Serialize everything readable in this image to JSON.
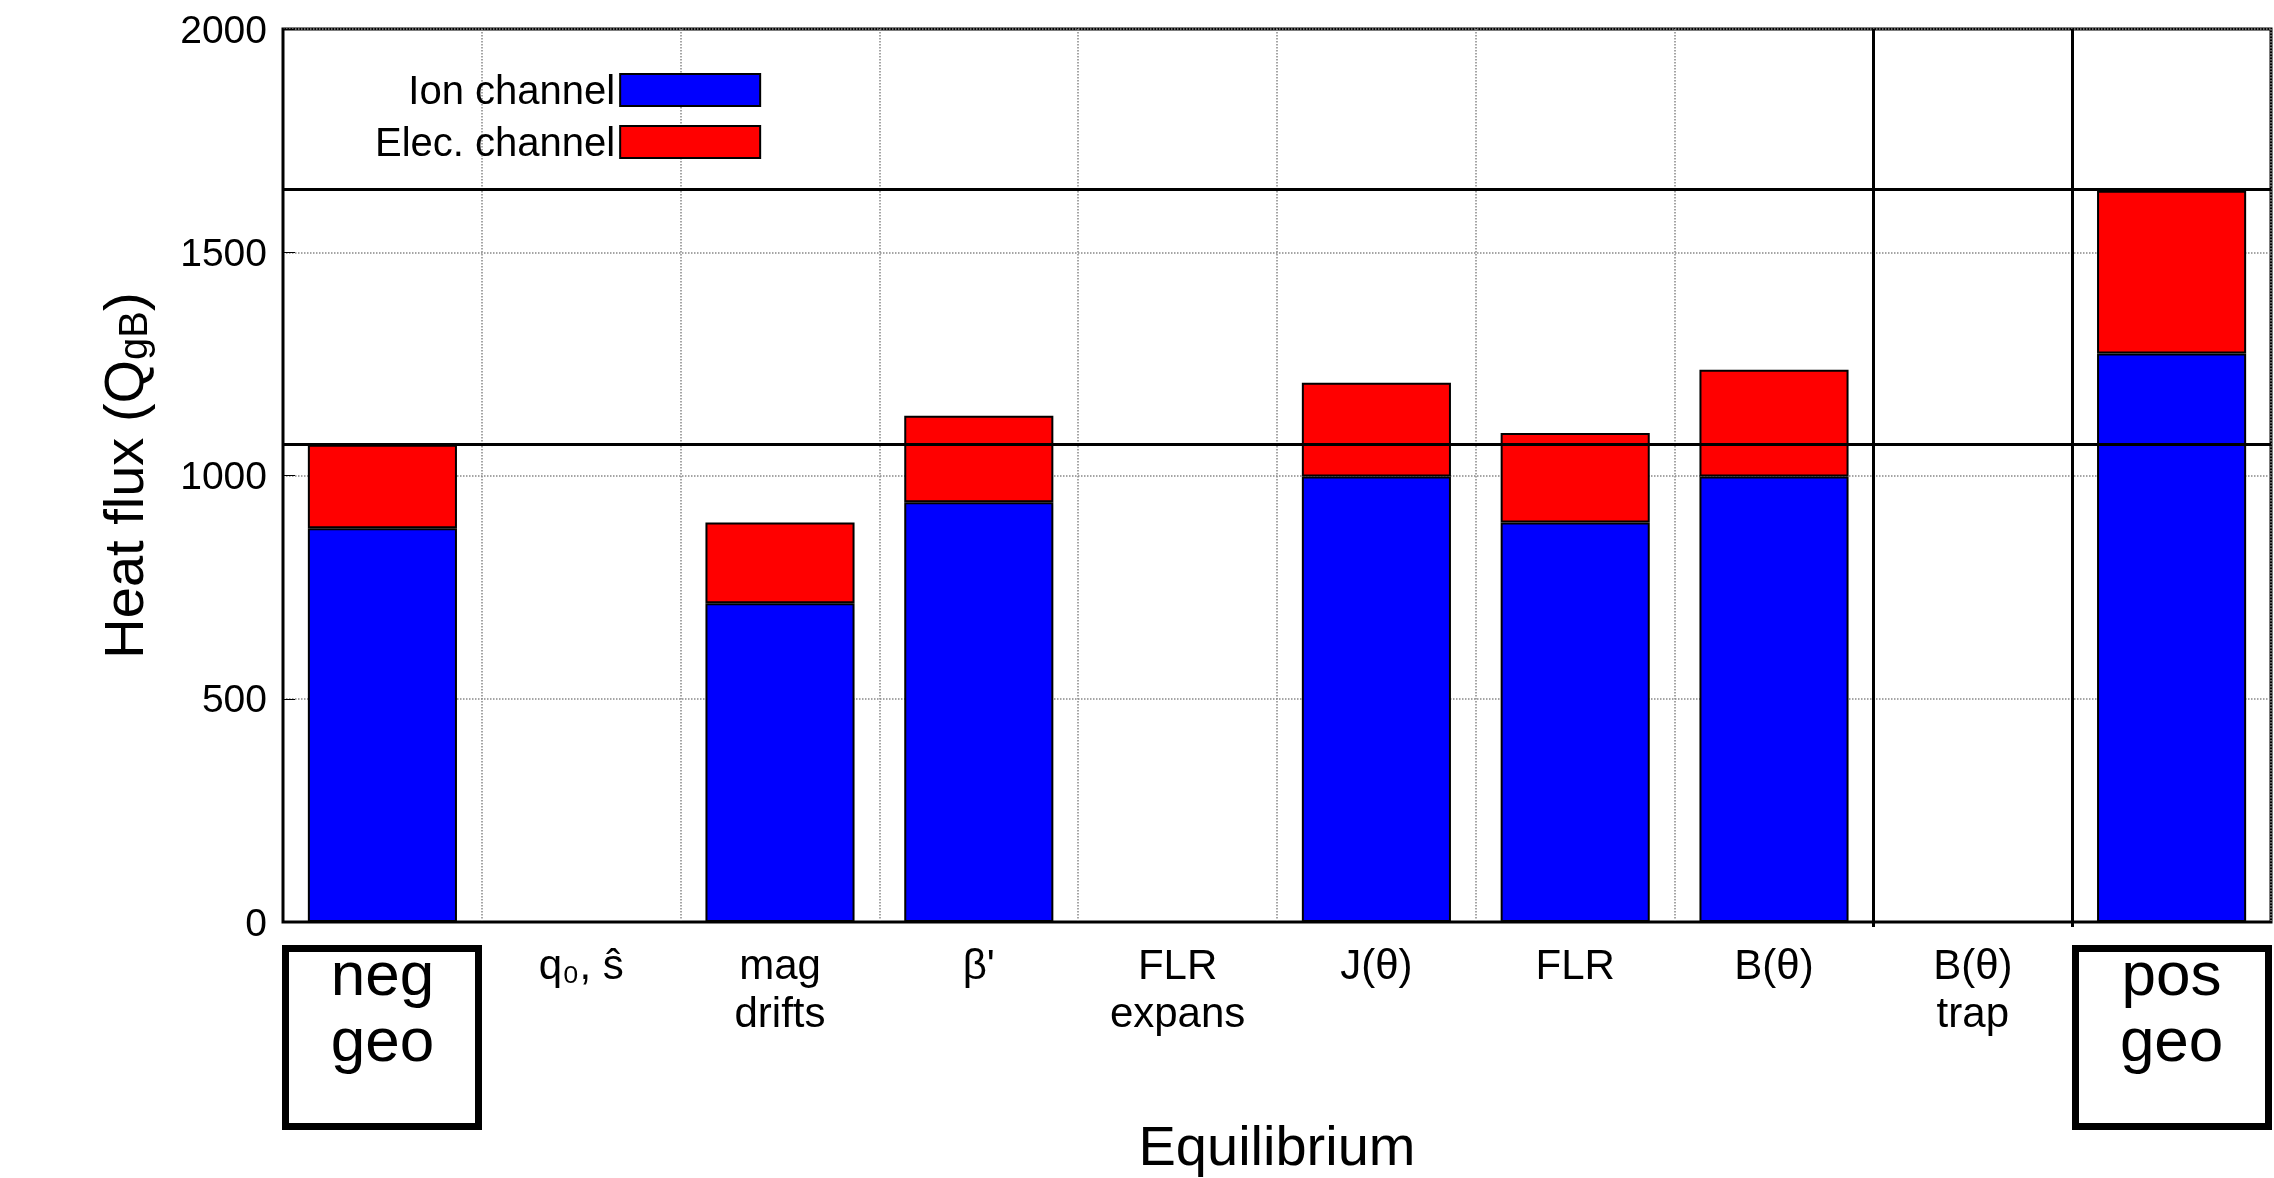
{
  "chart_data": {
    "type": "bar",
    "stacked": true,
    "categories": [
      "neg\ngeo",
      "q₀, ŝ",
      "mag\ndrifts",
      "β'",
      "FLR\nexpans",
      "J(θ)",
      "FLR",
      "B(θ)",
      "B(θ)\ntrap",
      "pos\ngeo"
    ],
    "series": [
      {
        "name": "Ion channel",
        "color": "#0000ff",
        "values": [
          882,
          null,
          714,
          940,
          null,
          998,
          895,
          998,
          null,
          1273
        ]
      },
      {
        "name": "Elec. channel",
        "color": "#ff0000",
        "values": [
          187,
          null,
          181,
          194,
          null,
          210,
          200,
          239,
          null,
          365
        ]
      }
    ],
    "xlabel": "Equilibrium",
    "ylabel": "Heat flux (Q$_{gB}$)",
    "ylim": [
      0,
      2000
    ],
    "yticks": [
      0,
      500,
      1000,
      1500,
      2000
    ],
    "ref_lines": [
      {
        "axis": "y",
        "value": 1069,
        "color": "#000000"
      },
      {
        "axis": "y",
        "value": 1641,
        "color": "#000000"
      }
    ],
    "grid": true,
    "legend": "top left"
  }
}
